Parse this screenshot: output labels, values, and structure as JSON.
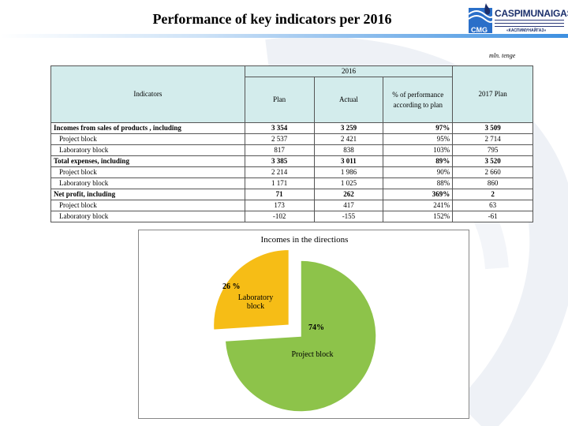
{
  "header": {
    "title": "Performance of key indicators per 2016",
    "logo_name": "CASPIMUNAIGAS",
    "logo_tagline": "«КАСПИМУНАЙГАЗ»",
    "logo_abbr": "CMG",
    "units": "mln. tenge"
  },
  "table": {
    "headers": {
      "indicators": "Indicators",
      "year": "2016",
      "plan": "Plan",
      "actual": "Actual",
      "pct": "% of performance according to plan",
      "plan2017": "2017 Plan"
    },
    "rows": [
      {
        "label": "Incomes from sales of products , including",
        "plan": "3 354",
        "actual": "3 259",
        "pct": "97%",
        "plan2017": "3 509",
        "bold": true
      },
      {
        "label": "Project block",
        "plan": "2 537",
        "actual": "2 421",
        "pct": "95%",
        "plan2017": "2 714",
        "bold": false
      },
      {
        "label": "Laboratory block",
        "plan": "817",
        "actual": "838",
        "pct": "103%",
        "plan2017": "795",
        "bold": false
      },
      {
        "label": "Total expenses, including",
        "plan": "3 385",
        "actual": "3 011",
        "pct": "89%",
        "plan2017": "3 520",
        "bold": true
      },
      {
        "label": "Project block",
        "plan": "2 214",
        "actual": "1 986",
        "pct": "90%",
        "plan2017": "2 660",
        "bold": false
      },
      {
        "label": "Laboratory block",
        "plan": "1 171",
        "actual": "1 025",
        "pct": "88%",
        "plan2017": "860",
        "bold": false
      },
      {
        "label": "Net profit, including",
        "plan": "71",
        "actual": "262",
        "pct": "369%",
        "plan2017": "2",
        "bold": true
      },
      {
        "label": "Project block",
        "plan": "173",
        "actual": "417",
        "pct": "241%",
        "plan2017": "63",
        "bold": false
      },
      {
        "label": "Laboratory block",
        "plan": "-102",
        "actual": "-155",
        "pct": "152%",
        "plan2017": "-61",
        "bold": false
      }
    ]
  },
  "chart_data": {
    "type": "pie",
    "title": "Incomes in the directions",
    "slices": [
      {
        "label": "Project block",
        "value": 74,
        "value_label": "74%",
        "color": "#8dc34a"
      },
      {
        "label": "Laboratory block",
        "value": 26,
        "value_label": "26 %",
        "color": "#f6bd16"
      }
    ],
    "exploded": true,
    "legend": "none"
  }
}
